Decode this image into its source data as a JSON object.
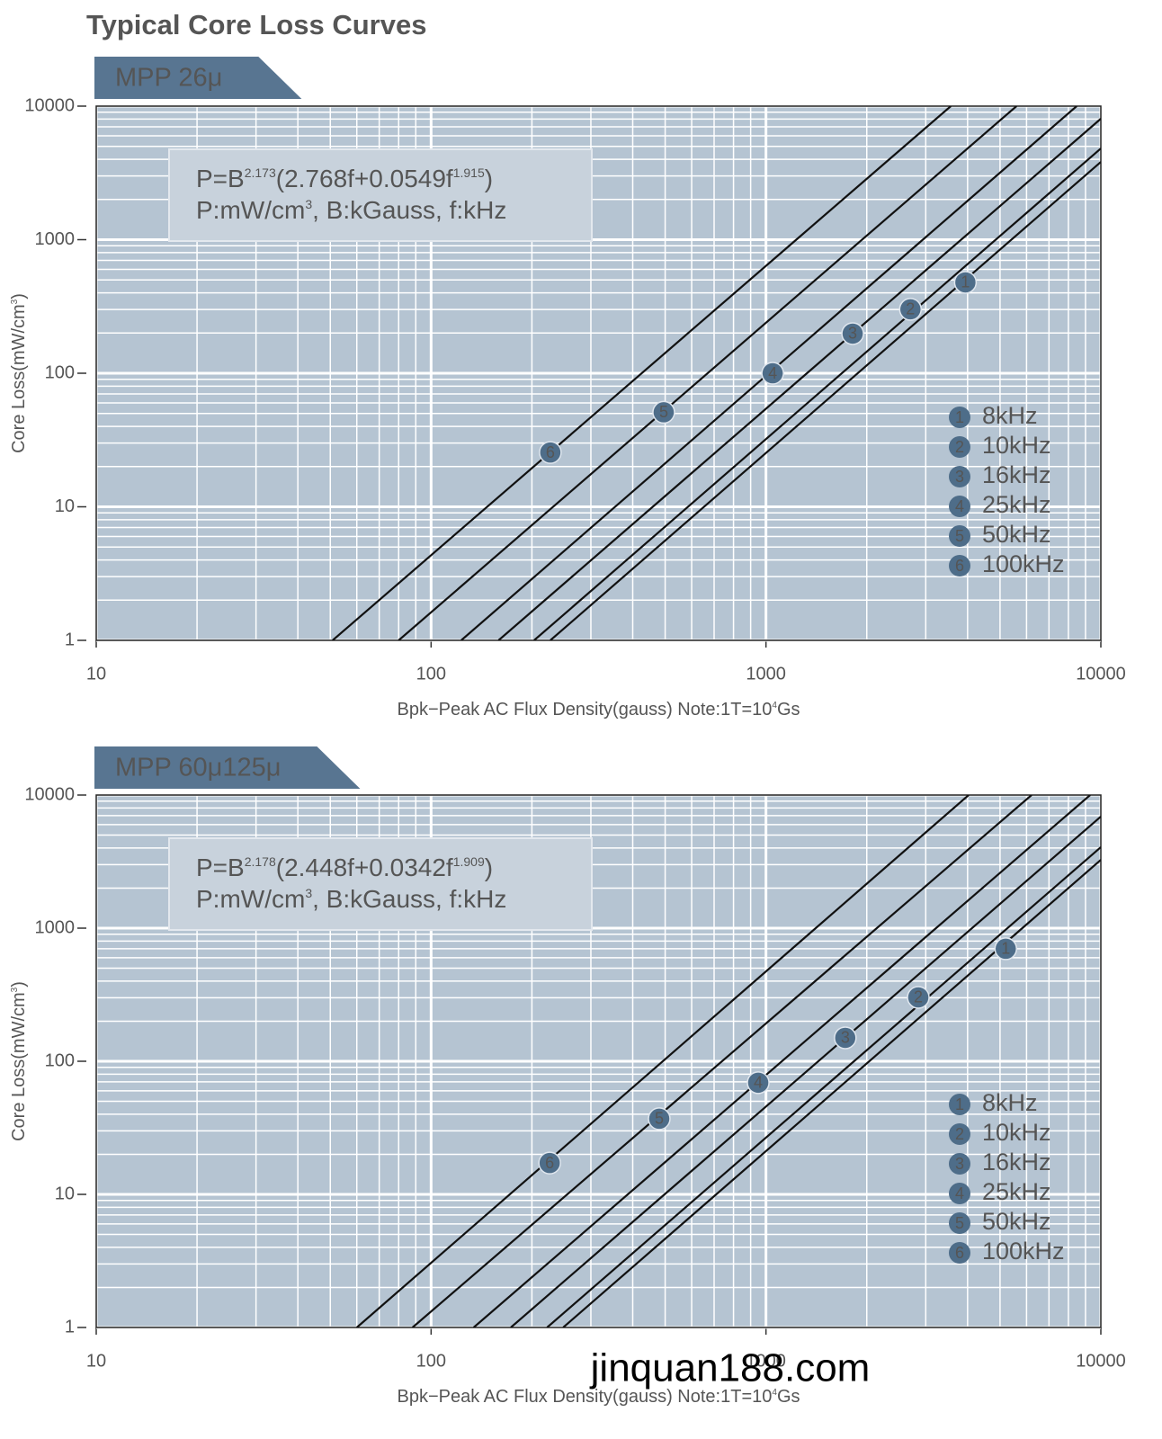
{
  "title": "Typical Core Loss Curves",
  "watermark": "jinquan188.com",
  "chart_data": [
    {
      "type": "line",
      "tab": "MPP 26μ",
      "formula": [
        "P=B",
        "2.173",
        "(2.768f+0.0549f",
        "1.915",
        ")"
      ],
      "units": [
        "P:mW/cm",
        "3",
        ",  B:kGauss,  f:kHz"
      ],
      "x_label": [
        "Bpk−Peak AC Flux Density(gauss) Note:1T=10",
        "4",
        "Gs"
      ],
      "y_label": [
        "Core Loss(mW/cm",
        "3",
        ")"
      ],
      "log_x": true,
      "log_y": true,
      "grid": true,
      "legend": "lower right",
      "xlim": [
        10,
        10000
      ],
      "xticks": [
        10,
        100,
        1000,
        10000
      ],
      "ylim": [
        1,
        10000
      ],
      "yticks": [
        1,
        10,
        100,
        1000,
        10000
      ],
      "xminor": [
        20,
        30,
        40,
        50,
        60,
        70,
        80,
        90,
        200,
        300,
        400,
        500,
        600,
        700,
        800,
        900,
        2000,
        3000,
        4000,
        5000,
        6000,
        7000,
        8000,
        9000
      ],
      "yminor": [
        2,
        3,
        4,
        5,
        6,
        7,
        8,
        9,
        20,
        30,
        40,
        50,
        60,
        70,
        80,
        90,
        200,
        300,
        400,
        500,
        600,
        700,
        800,
        900,
        2000,
        3000,
        4000,
        5000,
        6000,
        7000,
        8000,
        9000
      ],
      "series": [
        {
          "name": "8kHz",
          "color": "#111111",
          "x": [
            227,
            10000
          ],
          "values": [
            1,
            3820
          ],
          "marker": {
            "label": "1",
            "x": 3940,
            "y": 479
          }
        },
        {
          "name": "10kHz",
          "color": "#111111",
          "x": [
            203,
            10000
          ],
          "values": [
            1,
            4820
          ],
          "marker": {
            "label": "2",
            "x": 2700,
            "y": 301
          }
        },
        {
          "name": "16kHz",
          "color": "#111111",
          "x": [
            159,
            10000
          ],
          "values": [
            1,
            8050
          ],
          "marker": {
            "label": "3",
            "x": 1815,
            "y": 198
          }
        },
        {
          "name": "25kHz",
          "color": "#111111",
          "x": [
            123,
            8470
          ],
          "values": [
            1,
            10000
          ],
          "marker": {
            "label": "4",
            "x": 1047,
            "y": 100
          }
        },
        {
          "name": "50kHz",
          "color": "#111111",
          "x": [
            80,
            5600
          ],
          "values": [
            1,
            10000
          ],
          "marker": {
            "label": "5",
            "x": 495,
            "y": 51
          }
        },
        {
          "name": "100kHz",
          "color": "#111111",
          "x": [
            50.8,
            3565
          ],
          "values": [
            1,
            10000
          ],
          "marker": {
            "label": "6",
            "x": 227,
            "y": 25.5
          }
        }
      ]
    },
    {
      "type": "line",
      "tab": "MPP 60μ125μ",
      "formula": [
        "P=B",
        "2.178",
        "(2.448f+0.0342f",
        "1.909",
        ")"
      ],
      "units": [
        "P:mW/cm",
        "3",
        ",  B:kGauss,  f:kHz"
      ],
      "x_label": [
        "Bpk−Peak AC Flux Density(gauss) Note:1T=10",
        "4",
        "Gs"
      ],
      "y_label": [
        "Core Loss(mW/cm",
        "3",
        ")"
      ],
      "log_x": true,
      "log_y": true,
      "grid": true,
      "legend": "lower right",
      "xlim": [
        10,
        10000
      ],
      "xticks": [
        10,
        100,
        1000,
        10000
      ],
      "ylim": [
        1,
        10000
      ],
      "yticks": [
        1,
        10,
        100,
        1000,
        10000
      ],
      "xminor": [
        20,
        30,
        40,
        50,
        60,
        70,
        80,
        90,
        200,
        300,
        400,
        500,
        600,
        700,
        800,
        900,
        2000,
        3000,
        4000,
        5000,
        6000,
        7000,
        8000,
        9000
      ],
      "yminor": [
        2,
        3,
        4,
        5,
        6,
        7,
        8,
        9,
        20,
        30,
        40,
        50,
        60,
        70,
        80,
        90,
        200,
        300,
        400,
        500,
        600,
        700,
        800,
        900,
        2000,
        3000,
        4000,
        5000,
        6000,
        7000,
        8000,
        9000
      ],
      "series": [
        {
          "name": "8kHz",
          "color": "#111111",
          "x": [
            248,
            10000
          ],
          "values": [
            1,
            3260
          ],
          "marker": {
            "label": "1",
            "x": 5200,
            "y": 700
          }
        },
        {
          "name": "10kHz",
          "color": "#111111",
          "x": [
            222,
            10000
          ],
          "values": [
            1,
            4060
          ],
          "marker": {
            "label": "2",
            "x": 2850,
            "y": 302
          }
        },
        {
          "name": "16kHz",
          "color": "#111111",
          "x": [
            173,
            10000
          ],
          "values": [
            1,
            6890
          ],
          "marker": {
            "label": "3",
            "x": 1725,
            "y": 150
          }
        },
        {
          "name": "25kHz",
          "color": "#111111",
          "x": [
            134,
            9290
          ],
          "values": [
            1,
            10000
          ],
          "marker": {
            "label": "4",
            "x": 948,
            "y": 69
          }
        },
        {
          "name": "50kHz",
          "color": "#111111",
          "x": [
            88,
            6210
          ],
          "values": [
            1,
            10000
          ],
          "marker": {
            "label": "5",
            "x": 480,
            "y": 37
          }
        },
        {
          "name": "100kHz",
          "color": "#111111",
          "x": [
            60,
            4030
          ],
          "values": [
            1,
            10000
          ],
          "marker": {
            "label": "6",
            "x": 226,
            "y": 17.2
          }
        }
      ]
    }
  ]
}
